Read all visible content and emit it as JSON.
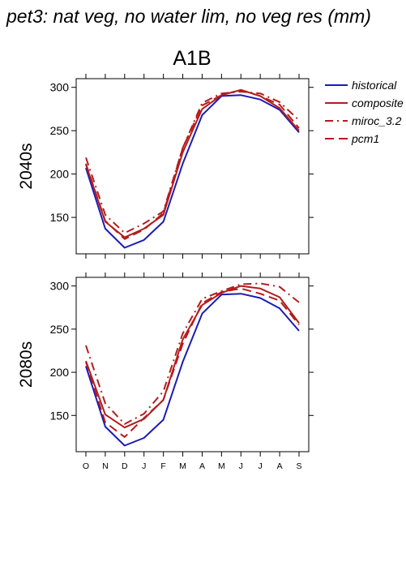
{
  "title": "pet3: nat veg, no water lim, no veg res (mm)",
  "colors": {
    "historical": "#1c1cb4",
    "future": "#b41c1c"
  },
  "chart_data": [
    {
      "type": "line",
      "scenario": "A1B",
      "period": "2040s",
      "categories": [
        "O",
        "N",
        "D",
        "J",
        "F",
        "M",
        "A",
        "M",
        "J",
        "J",
        "A",
        "S"
      ],
      "ylim": [
        108,
        310
      ],
      "yticks": [
        150,
        200,
        250,
        300
      ],
      "series": [
        {
          "name": "historical",
          "values": [
            207,
            137,
            115,
            124,
            145,
            212,
            268,
            290,
            291,
            286,
            274,
            248
          ]
        },
        {
          "name": "composite",
          "values": [
            211,
            145,
            127,
            137,
            153,
            225,
            275,
            291,
            297,
            290,
            276,
            250
          ]
        },
        {
          "name": "miroc_3.2",
          "values": [
            219,
            153,
            132,
            143,
            157,
            230,
            282,
            293,
            295,
            293,
            283,
            262
          ]
        },
        {
          "name": "pcm1",
          "values": [
            212,
            146,
            125,
            136,
            155,
            230,
            279,
            291,
            297,
            290,
            280,
            253
          ]
        }
      ]
    },
    {
      "type": "line",
      "scenario": "A1B",
      "period": "2080s",
      "categories": [
        "O",
        "N",
        "D",
        "J",
        "F",
        "M",
        "A",
        "M",
        "J",
        "J",
        "A",
        "S"
      ],
      "ylim": [
        108,
        310
      ],
      "yticks": [
        150,
        200,
        250,
        300
      ],
      "series": [
        {
          "name": "historical",
          "values": [
            207,
            137,
            115,
            124,
            145,
            212,
            268,
            290,
            291,
            286,
            274,
            248
          ]
        },
        {
          "name": "composite",
          "values": [
            213,
            151,
            136,
            146,
            168,
            238,
            278,
            292,
            300,
            297,
            287,
            257
          ]
        },
        {
          "name": "miroc_3.2",
          "values": [
            231,
            164,
            140,
            152,
            178,
            245,
            285,
            294,
            302,
            303,
            299,
            281
          ]
        },
        {
          "name": "pcm1",
          "values": [
            212,
            142,
            125,
            147,
            168,
            233,
            280,
            293,
            297,
            291,
            283,
            255
          ]
        }
      ]
    }
  ],
  "legend": [
    {
      "label": "historical",
      "dash": "",
      "color": "#1c1cb4"
    },
    {
      "label": "composite",
      "dash": "",
      "color": "#b41c1c"
    },
    {
      "label": "miroc_3.2",
      "dash": "10 5 2 5",
      "color": "#b41c1c"
    },
    {
      "label": "pcm1",
      "dash": "11 6",
      "color": "#b41c1c"
    }
  ]
}
